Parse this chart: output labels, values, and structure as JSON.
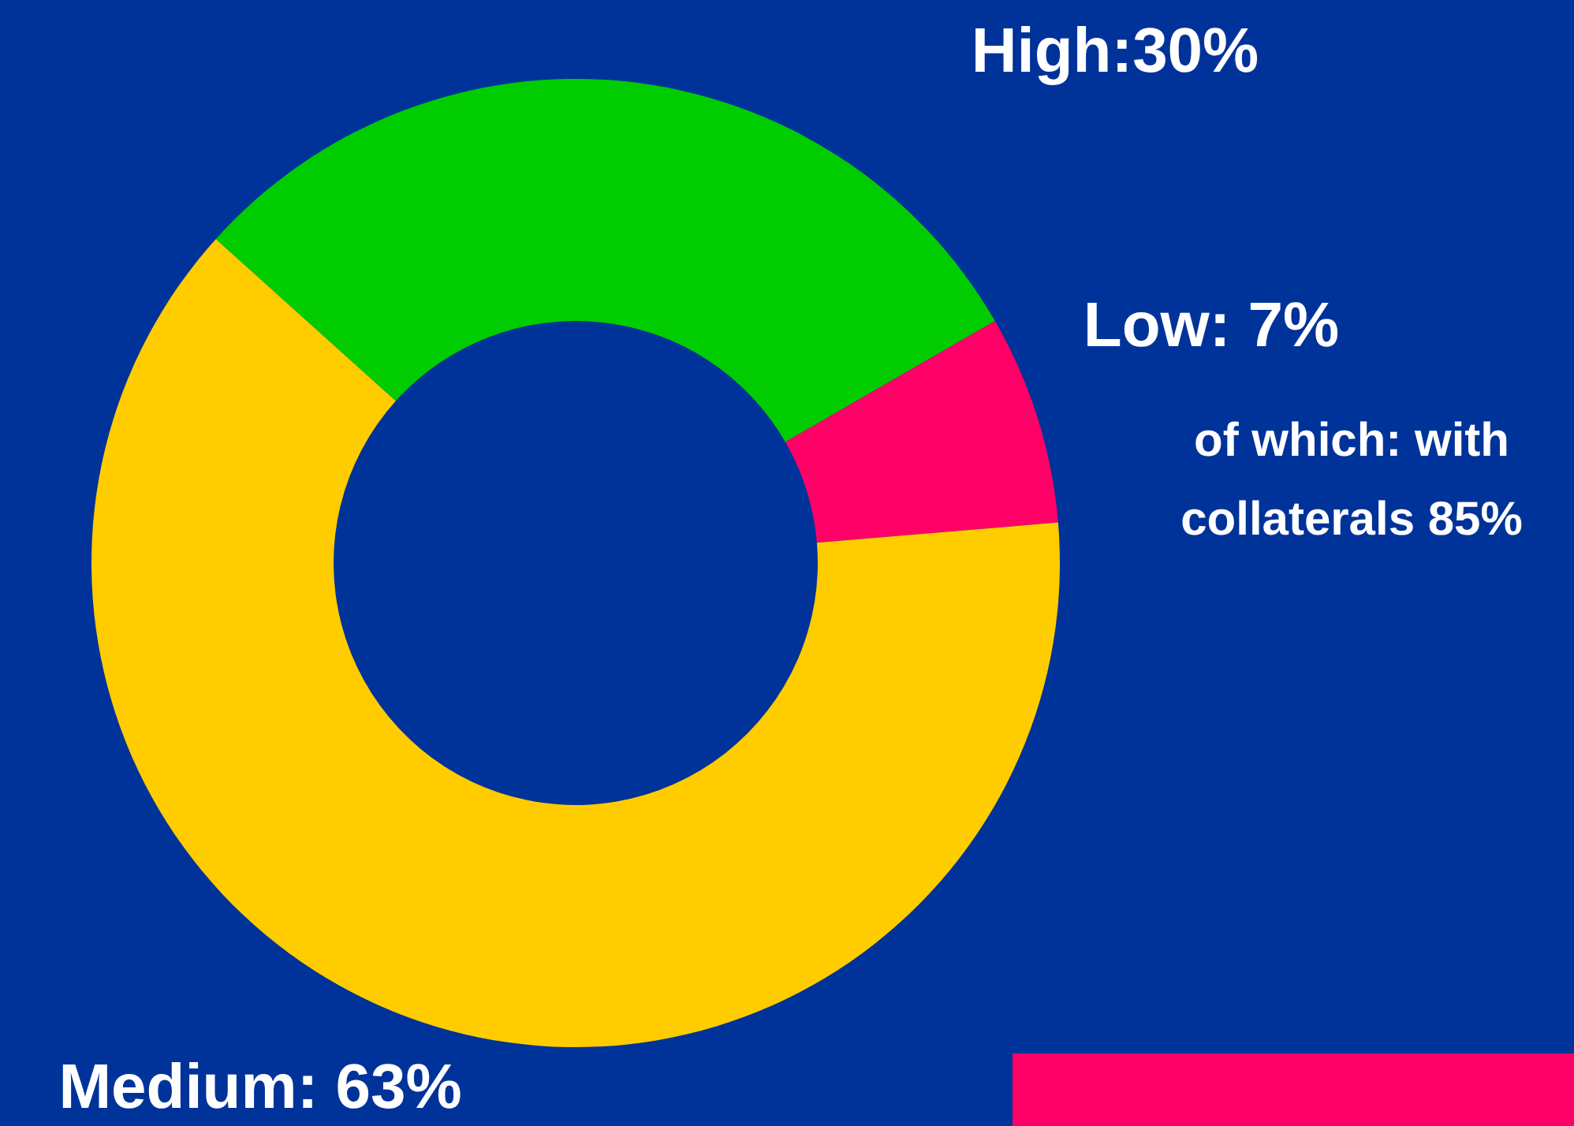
{
  "chart_data": {
    "type": "donut",
    "categories": [
      "High",
      "Low",
      "Medium"
    ],
    "values": [
      30,
      7,
      63
    ],
    "colors": [
      "#00cc00",
      "#ff0066",
      "#ffcc00"
    ],
    "value_labels": [
      ":30%",
      ": 7%",
      ": 63%"
    ],
    "annotations": [
      "of which: with collaterals 85%"
    ],
    "legend": false
  }
}
